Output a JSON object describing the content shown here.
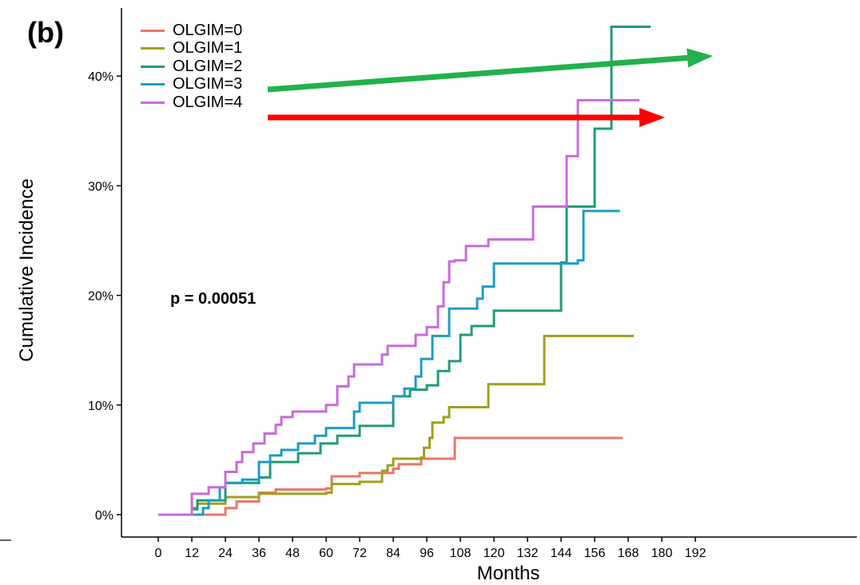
{
  "panel_label": "(b)",
  "p_value_text": "p = 0.00051",
  "colors": {
    "olgim0": "#E8776A",
    "olgim1": "#A0A01E",
    "olgim2": "#229A7A",
    "olgim3": "#1D9CC6",
    "olgim4": "#C86BD9",
    "arrow_green": "#22B14C",
    "arrow_red": "#FF0000"
  },
  "chart_data": {
    "type": "line",
    "step": true,
    "xlabel": "Months",
    "ylabel": "Cumulative Incidence",
    "xlim": [
      0,
      192
    ],
    "ylim": [
      0,
      45
    ],
    "xticks": [
      0,
      12,
      24,
      36,
      48,
      60,
      72,
      84,
      96,
      108,
      120,
      132,
      144,
      156,
      168,
      180,
      192
    ],
    "yticks": [
      0,
      10,
      20,
      30,
      40
    ],
    "ytick_labels": [
      "0%",
      "10%",
      "20%",
      "30%",
      "40%"
    ],
    "legend": [
      "OLGIM=0",
      "OLGIM=1",
      "OLGIM=2",
      "OLGIM=3",
      "OLGIM=4"
    ],
    "legend_position": "top-left",
    "grid": false,
    "series": [
      {
        "name": "OLGIM=0",
        "color_key": "olgim0",
        "points": [
          [
            0,
            0
          ],
          [
            24,
            0.6
          ],
          [
            28,
            1.2
          ],
          [
            36,
            2.0
          ],
          [
            42,
            2.3
          ],
          [
            60,
            2.4
          ],
          [
            62,
            3.5
          ],
          [
            72,
            3.8
          ],
          [
            84,
            4.2
          ],
          [
            86,
            4.6
          ],
          [
            94,
            5.1
          ],
          [
            106,
            7.0
          ],
          [
            166,
            7.0
          ]
        ]
      },
      {
        "name": "OLGIM=1",
        "color_key": "olgim1",
        "points": [
          [
            0,
            0
          ],
          [
            12,
            0.6
          ],
          [
            14,
            1.0
          ],
          [
            24,
            1.6
          ],
          [
            36,
            1.9
          ],
          [
            60,
            2.0
          ],
          [
            62,
            2.8
          ],
          [
            72,
            3.0
          ],
          [
            80,
            4.0
          ],
          [
            82,
            4.5
          ],
          [
            84,
            5.1
          ],
          [
            94,
            5.2
          ],
          [
            95,
            6.1
          ],
          [
            97,
            7.0
          ],
          [
            98,
            8.4
          ],
          [
            102,
            8.9
          ],
          [
            104,
            9.8
          ],
          [
            118,
            11.9
          ],
          [
            138,
            11.9
          ],
          [
            138,
            16.3
          ],
          [
            170,
            16.3
          ]
        ]
      },
      {
        "name": "OLGIM=2",
        "color_key": "olgim2",
        "points": [
          [
            0,
            0
          ],
          [
            12,
            0.5
          ],
          [
            14,
            1.3
          ],
          [
            24,
            2.9
          ],
          [
            36,
            3.4
          ],
          [
            40,
            4.8
          ],
          [
            50,
            5.6
          ],
          [
            58,
            6.5
          ],
          [
            64,
            7.2
          ],
          [
            72,
            8.1
          ],
          [
            84,
            10.8
          ],
          [
            90,
            11.4
          ],
          [
            96,
            11.8
          ],
          [
            100,
            13.1
          ],
          [
            104,
            14.0
          ],
          [
            108,
            16.4
          ],
          [
            112,
            17.2
          ],
          [
            120,
            18.6
          ],
          [
            144,
            18.6
          ],
          [
            144,
            23.0
          ],
          [
            146,
            28.1
          ],
          [
            156,
            28.1
          ],
          [
            156,
            35.2
          ],
          [
            162,
            35.2
          ],
          [
            162,
            44.5
          ],
          [
            176,
            44.5
          ]
        ]
      },
      {
        "name": "OLGIM=3",
        "color_key": "olgim3",
        "points": [
          [
            0,
            0
          ],
          [
            12,
            0
          ],
          [
            16,
            0.6
          ],
          [
            18,
            1.3
          ],
          [
            22,
            2.5
          ],
          [
            24,
            2.9
          ],
          [
            30,
            3.2
          ],
          [
            36,
            4.8
          ],
          [
            40,
            5.4
          ],
          [
            44,
            5.9
          ],
          [
            50,
            6.5
          ],
          [
            56,
            7.2
          ],
          [
            60,
            7.9
          ],
          [
            70,
            9.4
          ],
          [
            72,
            10.2
          ],
          [
            84,
            10.8
          ],
          [
            88,
            11.5
          ],
          [
            92,
            12.6
          ],
          [
            94,
            14.2
          ],
          [
            98,
            16.3
          ],
          [
            104,
            18.8
          ],
          [
            114,
            19.7
          ],
          [
            116,
            20.8
          ],
          [
            120,
            22.9
          ],
          [
            140,
            22.9
          ],
          [
            150,
            23.2
          ],
          [
            152,
            27.7
          ],
          [
            165,
            27.7
          ]
        ]
      },
      {
        "name": "OLGIM=4",
        "color_key": "olgim4",
        "points": [
          [
            0,
            0
          ],
          [
            12,
            1.9
          ],
          [
            18,
            2.5
          ],
          [
            24,
            3.9
          ],
          [
            28,
            4.8
          ],
          [
            30,
            5.7
          ],
          [
            34,
            6.5
          ],
          [
            38,
            7.4
          ],
          [
            42,
            8.2
          ],
          [
            44,
            8.9
          ],
          [
            48,
            9.4
          ],
          [
            60,
            10.0
          ],
          [
            64,
            11.7
          ],
          [
            68,
            12.6
          ],
          [
            70,
            13.7
          ],
          [
            80,
            14.6
          ],
          [
            82,
            15.4
          ],
          [
            92,
            16.4
          ],
          [
            96,
            17.1
          ],
          [
            100,
            19.0
          ],
          [
            102,
            21.2
          ],
          [
            104,
            23.1
          ],
          [
            106,
            23.2
          ],
          [
            110,
            24.5
          ],
          [
            118,
            25.1
          ],
          [
            134,
            28.1
          ],
          [
            144,
            28.1
          ],
          [
            146,
            32.7
          ],
          [
            150,
            37.8
          ],
          [
            172,
            37.8
          ]
        ]
      }
    ]
  }
}
